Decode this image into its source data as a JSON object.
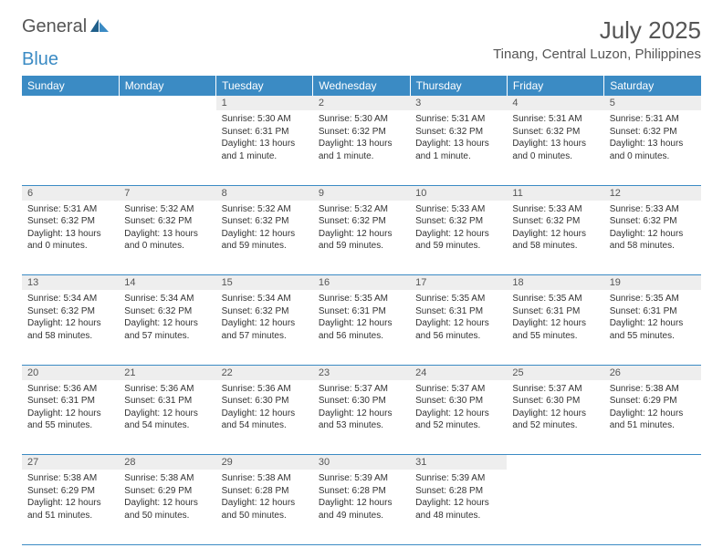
{
  "brand": {
    "word1": "General",
    "word2": "Blue"
  },
  "title": "July 2025",
  "location": "Tinang, Central Luzon, Philippines",
  "colors": {
    "header_bg": "#3b8bc4",
    "header_text": "#ffffff",
    "daynum_bg": "#eeeeee",
    "text": "#333333",
    "rule": "#3b8bc4"
  },
  "dayHeaders": [
    "Sunday",
    "Monday",
    "Tuesday",
    "Wednesday",
    "Thursday",
    "Friday",
    "Saturday"
  ],
  "weeks": [
    [
      {
        "n": "",
        "lines": []
      },
      {
        "n": "",
        "lines": []
      },
      {
        "n": "1",
        "lines": [
          "Sunrise: 5:30 AM",
          "Sunset: 6:31 PM",
          "Daylight: 13 hours and 1 minute."
        ]
      },
      {
        "n": "2",
        "lines": [
          "Sunrise: 5:30 AM",
          "Sunset: 6:32 PM",
          "Daylight: 13 hours and 1 minute."
        ]
      },
      {
        "n": "3",
        "lines": [
          "Sunrise: 5:31 AM",
          "Sunset: 6:32 PM",
          "Daylight: 13 hours and 1 minute."
        ]
      },
      {
        "n": "4",
        "lines": [
          "Sunrise: 5:31 AM",
          "Sunset: 6:32 PM",
          "Daylight: 13 hours and 0 minutes."
        ]
      },
      {
        "n": "5",
        "lines": [
          "Sunrise: 5:31 AM",
          "Sunset: 6:32 PM",
          "Daylight: 13 hours and 0 minutes."
        ]
      }
    ],
    [
      {
        "n": "6",
        "lines": [
          "Sunrise: 5:31 AM",
          "Sunset: 6:32 PM",
          "Daylight: 13 hours and 0 minutes."
        ]
      },
      {
        "n": "7",
        "lines": [
          "Sunrise: 5:32 AM",
          "Sunset: 6:32 PM",
          "Daylight: 13 hours and 0 minutes."
        ]
      },
      {
        "n": "8",
        "lines": [
          "Sunrise: 5:32 AM",
          "Sunset: 6:32 PM",
          "Daylight: 12 hours and 59 minutes."
        ]
      },
      {
        "n": "9",
        "lines": [
          "Sunrise: 5:32 AM",
          "Sunset: 6:32 PM",
          "Daylight: 12 hours and 59 minutes."
        ]
      },
      {
        "n": "10",
        "lines": [
          "Sunrise: 5:33 AM",
          "Sunset: 6:32 PM",
          "Daylight: 12 hours and 59 minutes."
        ]
      },
      {
        "n": "11",
        "lines": [
          "Sunrise: 5:33 AM",
          "Sunset: 6:32 PM",
          "Daylight: 12 hours and 58 minutes."
        ]
      },
      {
        "n": "12",
        "lines": [
          "Sunrise: 5:33 AM",
          "Sunset: 6:32 PM",
          "Daylight: 12 hours and 58 minutes."
        ]
      }
    ],
    [
      {
        "n": "13",
        "lines": [
          "Sunrise: 5:34 AM",
          "Sunset: 6:32 PM",
          "Daylight: 12 hours and 58 minutes."
        ]
      },
      {
        "n": "14",
        "lines": [
          "Sunrise: 5:34 AM",
          "Sunset: 6:32 PM",
          "Daylight: 12 hours and 57 minutes."
        ]
      },
      {
        "n": "15",
        "lines": [
          "Sunrise: 5:34 AM",
          "Sunset: 6:32 PM",
          "Daylight: 12 hours and 57 minutes."
        ]
      },
      {
        "n": "16",
        "lines": [
          "Sunrise: 5:35 AM",
          "Sunset: 6:31 PM",
          "Daylight: 12 hours and 56 minutes."
        ]
      },
      {
        "n": "17",
        "lines": [
          "Sunrise: 5:35 AM",
          "Sunset: 6:31 PM",
          "Daylight: 12 hours and 56 minutes."
        ]
      },
      {
        "n": "18",
        "lines": [
          "Sunrise: 5:35 AM",
          "Sunset: 6:31 PM",
          "Daylight: 12 hours and 55 minutes."
        ]
      },
      {
        "n": "19",
        "lines": [
          "Sunrise: 5:35 AM",
          "Sunset: 6:31 PM",
          "Daylight: 12 hours and 55 minutes."
        ]
      }
    ],
    [
      {
        "n": "20",
        "lines": [
          "Sunrise: 5:36 AM",
          "Sunset: 6:31 PM",
          "Daylight: 12 hours and 55 minutes."
        ]
      },
      {
        "n": "21",
        "lines": [
          "Sunrise: 5:36 AM",
          "Sunset: 6:31 PM",
          "Daylight: 12 hours and 54 minutes."
        ]
      },
      {
        "n": "22",
        "lines": [
          "Sunrise: 5:36 AM",
          "Sunset: 6:30 PM",
          "Daylight: 12 hours and 54 minutes."
        ]
      },
      {
        "n": "23",
        "lines": [
          "Sunrise: 5:37 AM",
          "Sunset: 6:30 PM",
          "Daylight: 12 hours and 53 minutes."
        ]
      },
      {
        "n": "24",
        "lines": [
          "Sunrise: 5:37 AM",
          "Sunset: 6:30 PM",
          "Daylight: 12 hours and 52 minutes."
        ]
      },
      {
        "n": "25",
        "lines": [
          "Sunrise: 5:37 AM",
          "Sunset: 6:30 PM",
          "Daylight: 12 hours and 52 minutes."
        ]
      },
      {
        "n": "26",
        "lines": [
          "Sunrise: 5:38 AM",
          "Sunset: 6:29 PM",
          "Daylight: 12 hours and 51 minutes."
        ]
      }
    ],
    [
      {
        "n": "27",
        "lines": [
          "Sunrise: 5:38 AM",
          "Sunset: 6:29 PM",
          "Daylight: 12 hours and 51 minutes."
        ]
      },
      {
        "n": "28",
        "lines": [
          "Sunrise: 5:38 AM",
          "Sunset: 6:29 PM",
          "Daylight: 12 hours and 50 minutes."
        ]
      },
      {
        "n": "29",
        "lines": [
          "Sunrise: 5:38 AM",
          "Sunset: 6:28 PM",
          "Daylight: 12 hours and 50 minutes."
        ]
      },
      {
        "n": "30",
        "lines": [
          "Sunrise: 5:39 AM",
          "Sunset: 6:28 PM",
          "Daylight: 12 hours and 49 minutes."
        ]
      },
      {
        "n": "31",
        "lines": [
          "Sunrise: 5:39 AM",
          "Sunset: 6:28 PM",
          "Daylight: 12 hours and 48 minutes."
        ]
      },
      {
        "n": "",
        "lines": []
      },
      {
        "n": "",
        "lines": []
      }
    ]
  ]
}
